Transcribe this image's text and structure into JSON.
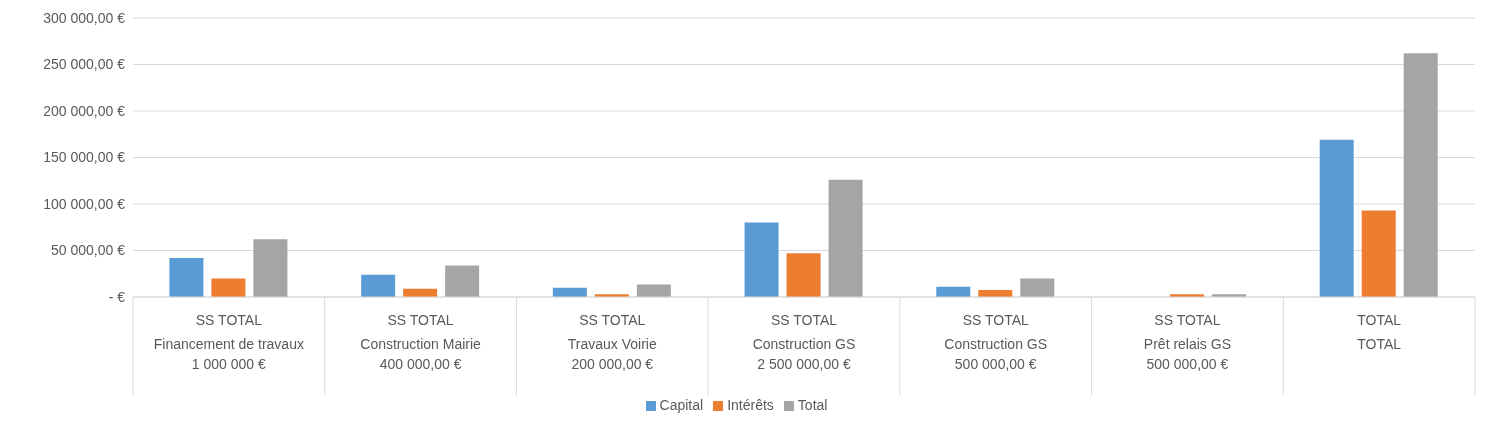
{
  "chart_data": {
    "type": "bar",
    "categories": [
      "SS TOTAL\nFinancement de travaux\n1 000 000 €",
      "SS TOTAL\nConstruction Mairie\n400 000,00 €",
      "SS TOTAL\nTravaux Voirie\n200 000,00 €",
      "SS TOTAL\nConstruction GS\n2 500 000,00 €",
      "SS TOTAL\nConstruction GS\n500 000,00 €",
      "SS TOTAL\nPrêt relais GS\n500 000,00 €",
      "TOTAL\nTOTAL"
    ],
    "series": [
      {
        "name": "Capital",
        "color": "#5b9bd5",
        "values": [
          42000,
          24000,
          10000,
          80000,
          11000,
          0,
          169000
        ]
      },
      {
        "name": "Intérêts",
        "color": "#ed7d31",
        "values": [
          20000,
          9000,
          3000,
          47000,
          7500,
          3000,
          93000
        ]
      },
      {
        "name": "Total",
        "color": "#a5a5a5",
        "values": [
          62000,
          34000,
          13500,
          126000,
          20000,
          3000,
          262000
        ]
      }
    ],
    "ylim": [
      0,
      300000
    ],
    "yticks": [
      {
        "value": 0,
        "label": "-   €"
      },
      {
        "value": 50000,
        "label": "50 000,00 €"
      },
      {
        "value": 100000,
        "label": "100 000,00 €"
      },
      {
        "value": 150000,
        "label": "150 000,00 €"
      },
      {
        "value": 200000,
        "label": "200 000,00 €"
      },
      {
        "value": 250000,
        "label": "250 000,00 €"
      },
      {
        "value": 300000,
        "label": "300 000,00 €"
      }
    ],
    "grid": "y",
    "legend": "bottom"
  }
}
